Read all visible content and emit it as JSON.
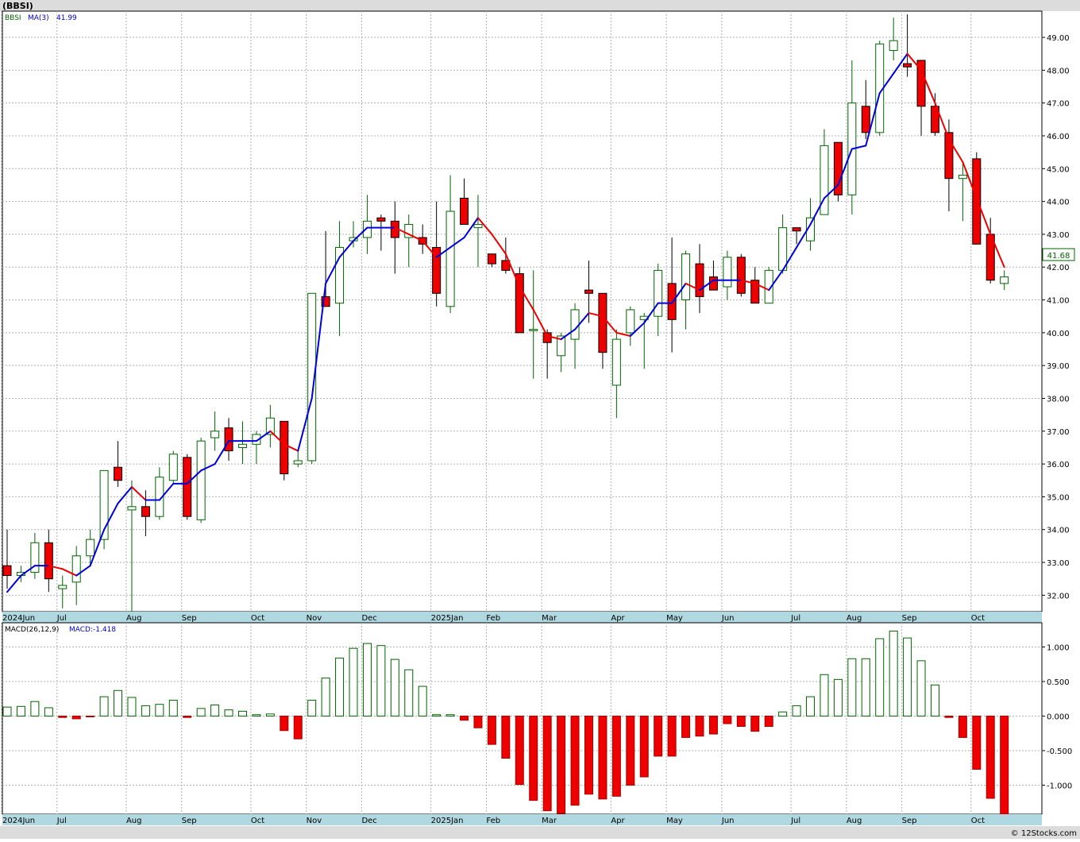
{
  "header": {
    "symbol": "(BBSI)",
    "watermark": "© 12Stocks.com"
  },
  "colors": {
    "up_candle": "#006400",
    "down_candle": "#ee0000",
    "ma_up": "#0000dd",
    "ma_down": "#ee0000",
    "macd_pos": "#006400",
    "macd_neg": "#ee0000",
    "axis_band": "#b0d8e0",
    "price_badge": "#006400"
  },
  "chart_data": [
    {
      "type": "candlestick",
      "title": "(BBSI)",
      "legend": {
        "ticker": "BBSI",
        "ma_label": "MA(3)",
        "ma_value": "41.99"
      },
      "last_price_label": "41.68",
      "ylim": [
        31.5,
        49.8
      ],
      "y_ticks": [
        "32.00",
        "33.00",
        "34.00",
        "35.00",
        "36.00",
        "37.00",
        "38.00",
        "39.00",
        "40.00",
        "41.00",
        "42.00",
        "43.00",
        "44.00",
        "45.00",
        "46.00",
        "47.00",
        "48.00",
        "49.00"
      ],
      "x_tick_labels": [
        {
          "label": "2024Jun",
          "i": 0
        },
        {
          "label": "Jul",
          "i": 4
        },
        {
          "label": "Aug",
          "i": 9
        },
        {
          "label": "Sep",
          "i": 13
        },
        {
          "label": "Oct",
          "i": 18
        },
        {
          "label": "Nov",
          "i": 22
        },
        {
          "label": "Dec",
          "i": 26
        },
        {
          "label": "2025Jan",
          "i": 31
        },
        {
          "label": "Feb",
          "i": 35
        },
        {
          "label": "Mar",
          "i": 39
        },
        {
          "label": "Apr",
          "i": 44
        },
        {
          "label": "May",
          "i": 48
        },
        {
          "label": "Jun",
          "i": 52
        },
        {
          "label": "Jul",
          "i": 57
        },
        {
          "label": "Aug",
          "i": 61
        },
        {
          "label": "Sep",
          "i": 65
        },
        {
          "label": "Oct",
          "i": 70
        }
      ],
      "candles": [
        [
          32.9,
          34.0,
          32.2,
          32.6
        ],
        [
          32.6,
          32.9,
          32.4,
          32.7
        ],
        [
          32.7,
          33.9,
          32.5,
          33.6
        ],
        [
          33.6,
          34.0,
          32.1,
          32.5
        ],
        [
          32.2,
          32.6,
          31.6,
          32.3
        ],
        [
          32.4,
          33.5,
          31.7,
          33.2
        ],
        [
          33.2,
          34.0,
          32.9,
          33.7
        ],
        [
          33.7,
          35.8,
          33.4,
          35.8
        ],
        [
          35.9,
          36.7,
          35.3,
          35.5
        ],
        [
          34.6,
          35.5,
          31.5,
          34.7
        ],
        [
          34.7,
          35.2,
          33.8,
          34.4
        ],
        [
          34.4,
          35.9,
          34.3,
          35.6
        ],
        [
          35.5,
          36.4,
          35.4,
          36.3
        ],
        [
          36.2,
          36.3,
          34.3,
          34.4
        ],
        [
          34.3,
          36.8,
          34.2,
          36.7
        ],
        [
          36.8,
          37.6,
          36.4,
          37.0
        ],
        [
          37.1,
          37.4,
          36.1,
          36.4
        ],
        [
          36.5,
          37.3,
          36.0,
          36.6
        ],
        [
          36.6,
          37.0,
          36.0,
          36.9
        ],
        [
          36.9,
          37.8,
          36.5,
          37.4
        ],
        [
          37.3,
          37.3,
          35.5,
          35.7
        ],
        [
          36.0,
          36.4,
          35.9,
          36.1
        ],
        [
          36.1,
          41.2,
          36.0,
          41.2
        ],
        [
          41.1,
          43.1,
          40.9,
          40.8
        ],
        [
          40.9,
          43.4,
          39.9,
          42.6
        ],
        [
          42.8,
          43.4,
          42.6,
          42.9
        ],
        [
          42.9,
          44.2,
          42.4,
          43.4
        ],
        [
          43.5,
          43.6,
          42.5,
          43.4
        ],
        [
          43.4,
          44.0,
          41.8,
          42.9
        ],
        [
          42.9,
          43.6,
          42.0,
          43.3
        ],
        [
          42.9,
          43.3,
          42.4,
          42.7
        ],
        [
          42.6,
          44.0,
          40.8,
          41.2
        ],
        [
          40.8,
          44.8,
          40.6,
          43.7
        ],
        [
          44.1,
          44.7,
          43.3,
          43.3
        ],
        [
          43.2,
          44.2,
          42.0,
          43.3
        ],
        [
          42.4,
          42.4,
          42.0,
          42.1
        ],
        [
          42.2,
          42.9,
          41.8,
          41.9
        ],
        [
          41.8,
          42.0,
          40.0,
          40.0
        ],
        [
          40.1,
          41.9,
          38.6,
          40.1
        ],
        [
          40.0,
          40.1,
          38.6,
          39.7
        ],
        [
          39.3,
          40.0,
          38.8,
          39.9
        ],
        [
          39.8,
          40.9,
          38.9,
          40.7
        ],
        [
          41.3,
          42.2,
          40.3,
          41.2
        ],
        [
          41.2,
          41.2,
          38.9,
          39.4
        ],
        [
          38.4,
          40.1,
          37.4,
          39.8
        ],
        [
          40.0,
          40.8,
          39.6,
          40.7
        ],
        [
          40.4,
          40.6,
          38.9,
          40.5
        ],
        [
          40.5,
          42.1,
          39.9,
          41.9
        ],
        [
          41.5,
          42.9,
          39.4,
          40.4
        ],
        [
          41.0,
          42.5,
          40.1,
          42.4
        ],
        [
          42.1,
          42.7,
          40.6,
          41.1
        ],
        [
          41.7,
          42.2,
          41.3,
          41.3
        ],
        [
          41.4,
          42.5,
          41.0,
          42.3
        ],
        [
          42.3,
          42.4,
          41.1,
          41.2
        ],
        [
          41.6,
          42.0,
          40.9,
          40.9
        ],
        [
          40.9,
          42.0,
          40.9,
          41.9
        ],
        [
          41.9,
          43.6,
          41.8,
          43.2
        ],
        [
          43.2,
          43.2,
          42.7,
          43.1
        ],
        [
          42.8,
          44.1,
          42.5,
          43.5
        ],
        [
          43.6,
          46.2,
          43.6,
          45.7
        ],
        [
          45.8,
          45.8,
          44.0,
          44.2
        ],
        [
          44.2,
          48.3,
          43.6,
          47.0
        ],
        [
          46.9,
          47.7,
          45.9,
          46.1
        ],
        [
          46.1,
          48.9,
          46.0,
          48.8
        ],
        [
          48.6,
          49.6,
          48.3,
          48.9
        ],
        [
          48.2,
          49.7,
          47.8,
          48.1
        ],
        [
          48.3,
          48.3,
          46.0,
          46.9
        ],
        [
          46.9,
          47.3,
          46.0,
          46.1
        ],
        [
          46.1,
          46.5,
          43.7,
          44.7
        ],
        [
          44.7,
          45.2,
          43.4,
          44.8
        ],
        [
          45.3,
          45.5,
          42.7,
          42.7
        ],
        [
          43.0,
          43.5,
          41.5,
          41.6
        ],
        [
          41.5,
          41.9,
          41.3,
          41.7
        ]
      ],
      "ma3": [
        32.1,
        32.6,
        32.9,
        32.9,
        32.8,
        32.6,
        32.9,
        34.0,
        34.8,
        35.3,
        34.9,
        34.9,
        35.4,
        35.4,
        35.8,
        36.0,
        36.7,
        36.7,
        36.7,
        37.0,
        36.6,
        36.4,
        38.0,
        41.5,
        42.3,
        42.8,
        43.2,
        43.2,
        43.2,
        43.0,
        42.8,
        42.3,
        42.6,
        42.9,
        43.5,
        43.0,
        42.4,
        41.4,
        40.7,
        39.9,
        39.8,
        40.1,
        40.6,
        40.5,
        40.0,
        39.9,
        40.3,
        40.9,
        40.9,
        41.5,
        41.3,
        41.6,
        41.6,
        41.6,
        41.5,
        41.3,
        41.9,
        42.6,
        43.3,
        44.1,
        44.5,
        45.6,
        45.7,
        47.3,
        47.9,
        48.5,
        48.0,
        47.0,
        45.9,
        45.2,
        44.1,
        43.0,
        42.0
      ]
    },
    {
      "type": "bar",
      "title": "MACD(26,12,9)",
      "legend": {
        "label": "MACD(26,12,9)",
        "value_label": "MACD:-1.418"
      },
      "ylim": [
        -1.42,
        1.35
      ],
      "y_ticks": [
        "1.000",
        "0.500",
        "0.000",
        "-0.500",
        "-1.000"
      ],
      "values": [
        0.13,
        0.14,
        0.21,
        0.12,
        -0.02,
        -0.04,
        -0.01,
        0.28,
        0.37,
        0.27,
        0.15,
        0.17,
        0.23,
        -0.02,
        0.11,
        0.16,
        0.09,
        0.07,
        0.02,
        0.03,
        -0.21,
        -0.33,
        0.23,
        0.55,
        0.84,
        0.98,
        1.05,
        1.02,
        0.82,
        0.67,
        0.43,
        0.02,
        0.02,
        -0.06,
        -0.17,
        -0.41,
        -0.61,
        -0.99,
        -1.22,
        -1.37,
        -1.41,
        -1.29,
        -1.13,
        -1.2,
        -1.16,
        -1.0,
        -0.88,
        -0.58,
        -0.58,
        -0.31,
        -0.29,
        -0.26,
        -0.11,
        -0.15,
        -0.22,
        -0.15,
        0.06,
        0.15,
        0.28,
        0.6,
        0.53,
        0.83,
        0.83,
        1.12,
        1.23,
        1.13,
        0.8,
        0.45,
        -0.02,
        -0.31,
        -0.77,
        -1.19,
        -1.418
      ]
    }
  ]
}
